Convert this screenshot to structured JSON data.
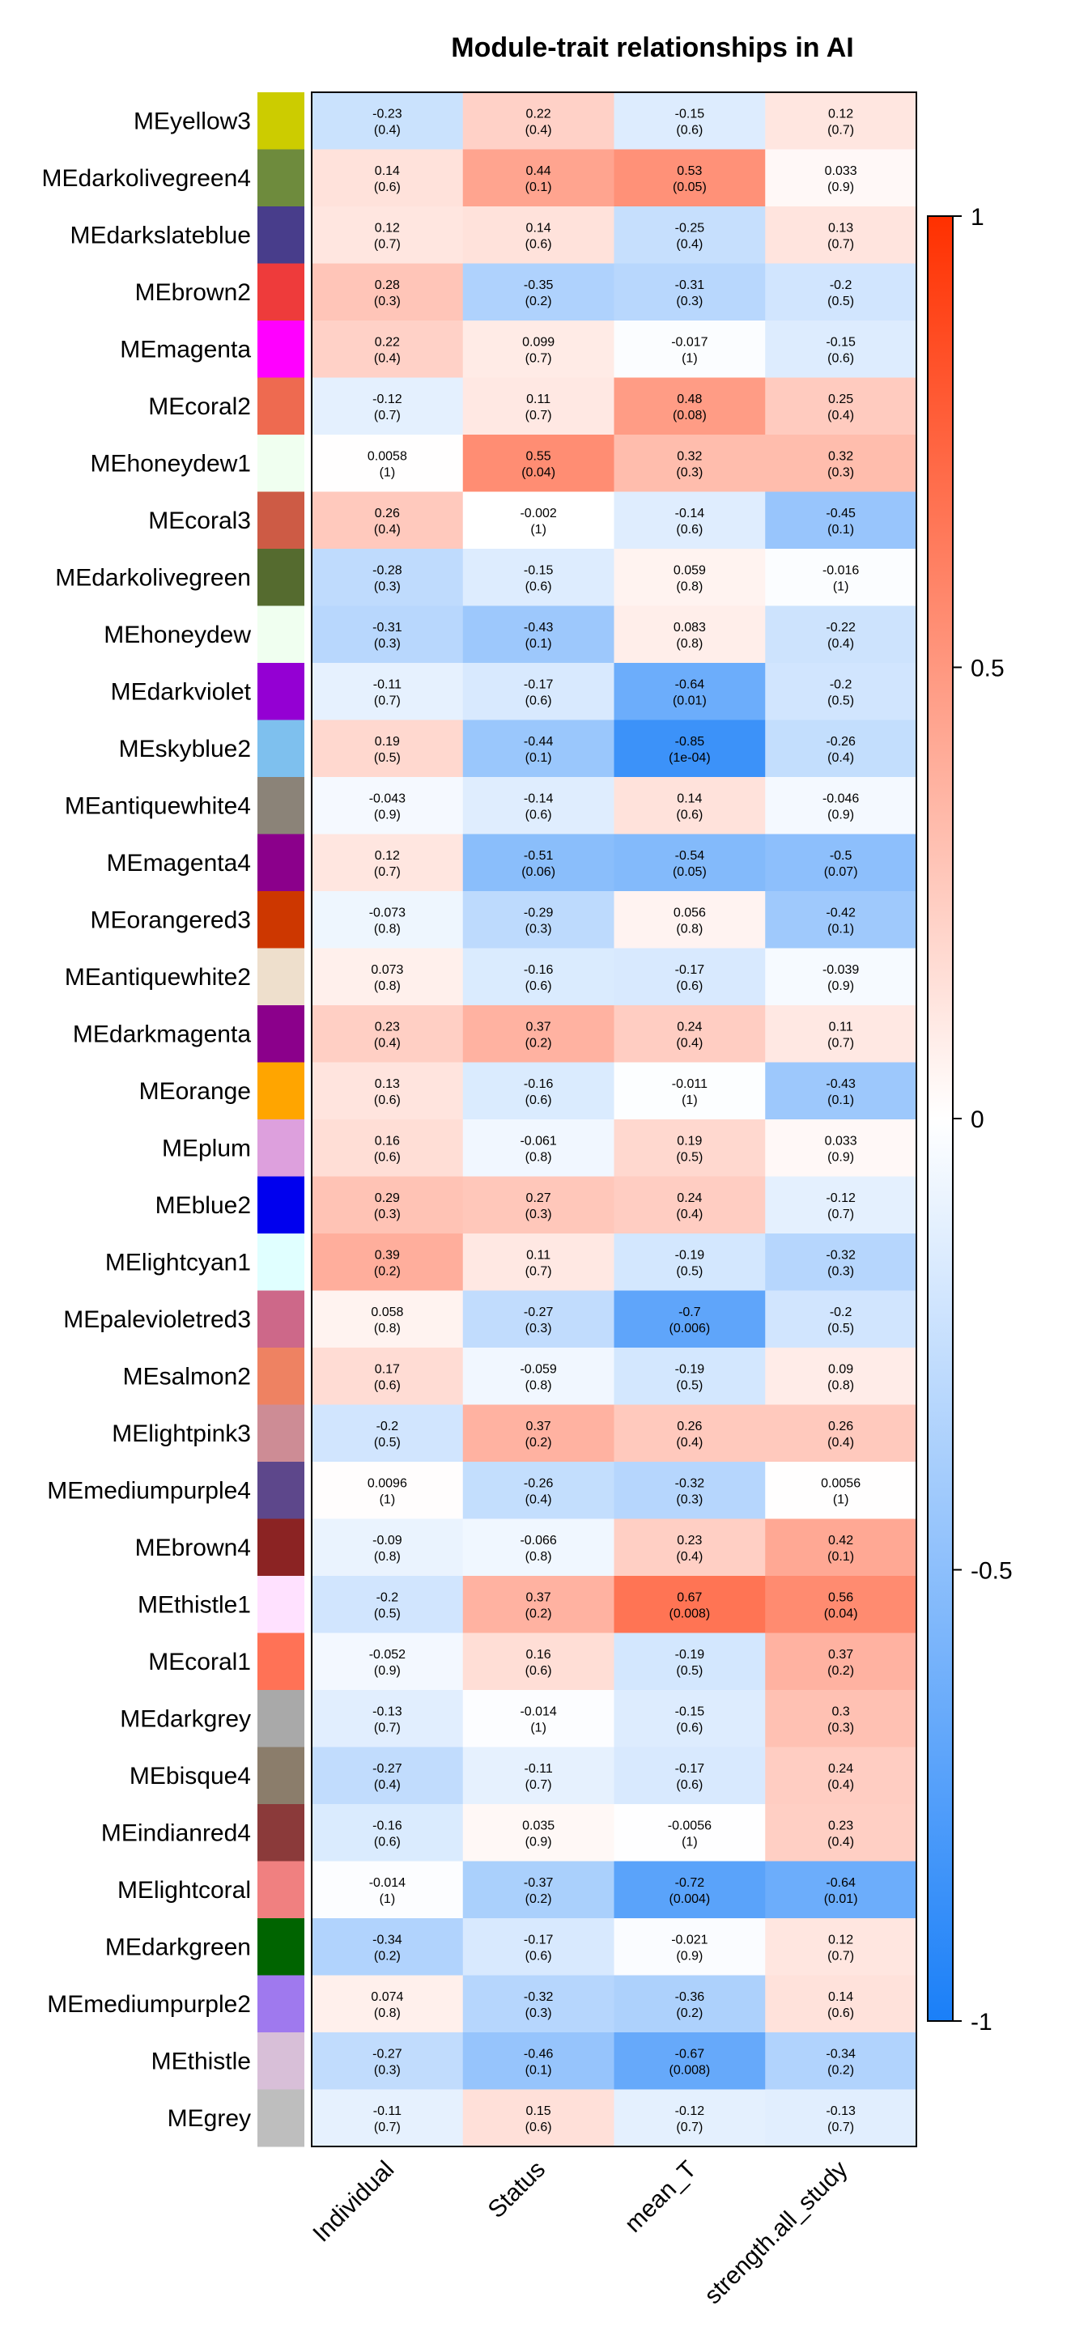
{
  "chart_data": {
    "type": "heatmap",
    "title": "Module-trait relationships in AI",
    "columns": [
      "Individual",
      "Status",
      "mean_T",
      "strength.all_study"
    ],
    "colorbar": {
      "min": -1,
      "max": 1,
      "ticks": [
        "1",
        "0.5",
        "0",
        "-0.5",
        "-1"
      ],
      "tick_values": [
        1,
        0.5,
        0,
        -0.5,
        -1
      ]
    },
    "colors": {
      "neg": "#1a7ff8",
      "mid": "#ffffff",
      "pos": "#ff3000"
    },
    "rows": [
      {
        "module": "MEyellow3",
        "swatch": "#cccc00",
        "values": [
          -0.23,
          0.22,
          -0.15,
          0.12
        ],
        "labels": [
          "-0.23",
          "0.22",
          "-0.15",
          "0.12"
        ],
        "pvalues": [
          "(0.4)",
          "(0.4)",
          "(0.6)",
          "(0.7)"
        ]
      },
      {
        "module": "MEdarkolivegreen4",
        "swatch": "#6e8b3d",
        "values": [
          0.14,
          0.44,
          0.53,
          0.033
        ],
        "labels": [
          "0.14",
          "0.44",
          "0.53",
          "0.033"
        ],
        "pvalues": [
          "(0.6)",
          "(0.1)",
          "(0.05)",
          "(0.9)"
        ]
      },
      {
        "module": "MEdarkslateblue",
        "swatch": "#483d8b",
        "values": [
          0.12,
          0.14,
          -0.25,
          0.13
        ],
        "labels": [
          "0.12",
          "0.14",
          "-0.25",
          "0.13"
        ],
        "pvalues": [
          "(0.7)",
          "(0.6)",
          "(0.4)",
          "(0.7)"
        ]
      },
      {
        "module": "MEbrown2",
        "swatch": "#ee3b3b",
        "values": [
          0.28,
          -0.35,
          -0.31,
          -0.2
        ],
        "labels": [
          "0.28",
          "-0.35",
          "-0.31",
          "-0.2"
        ],
        "pvalues": [
          "(0.3)",
          "(0.2)",
          "(0.3)",
          "(0.5)"
        ]
      },
      {
        "module": "MEmagenta",
        "swatch": "#ff00ff",
        "values": [
          0.22,
          0.099,
          -0.017,
          -0.15
        ],
        "labels": [
          "0.22",
          "0.099",
          "-0.017",
          "-0.15"
        ],
        "pvalues": [
          "(0.4)",
          "(0.7)",
          "(1)",
          "(0.6)"
        ]
      },
      {
        "module": "MEcoral2",
        "swatch": "#ee6a50",
        "values": [
          -0.12,
          0.11,
          0.48,
          0.25
        ],
        "labels": [
          "-0.12",
          "0.11",
          "0.48",
          "0.25"
        ],
        "pvalues": [
          "(0.7)",
          "(0.7)",
          "(0.08)",
          "(0.4)"
        ]
      },
      {
        "module": "MEhoneydew1",
        "swatch": "#f0fff0",
        "values": [
          0.0058,
          0.55,
          0.32,
          0.32
        ],
        "labels": [
          "0.0058",
          "0.55",
          "0.32",
          "0.32"
        ],
        "pvalues": [
          "(1)",
          "(0.04)",
          "(0.3)",
          "(0.3)"
        ]
      },
      {
        "module": "MEcoral3",
        "swatch": "#cd5b45",
        "values": [
          0.26,
          -0.002,
          -0.14,
          -0.45
        ],
        "labels": [
          "0.26",
          "-0.002",
          "-0.14",
          "-0.45"
        ],
        "pvalues": [
          "(0.4)",
          "(1)",
          "(0.6)",
          "(0.1)"
        ]
      },
      {
        "module": "MEdarkolivegreen",
        "swatch": "#556b2f",
        "values": [
          -0.28,
          -0.15,
          0.059,
          -0.016
        ],
        "labels": [
          "-0.28",
          "-0.15",
          "0.059",
          "-0.016"
        ],
        "pvalues": [
          "(0.3)",
          "(0.6)",
          "(0.8)",
          "(1)"
        ]
      },
      {
        "module": "MEhoneydew",
        "swatch": "#f0fff0",
        "values": [
          -0.31,
          -0.43,
          0.083,
          -0.22
        ],
        "labels": [
          "-0.31",
          "-0.43",
          "0.083",
          "-0.22"
        ],
        "pvalues": [
          "(0.3)",
          "(0.1)",
          "(0.8)",
          "(0.4)"
        ]
      },
      {
        "module": "MEdarkviolet",
        "swatch": "#9400d3",
        "values": [
          -0.11,
          -0.17,
          -0.64,
          -0.2
        ],
        "labels": [
          "-0.11",
          "-0.17",
          "-0.64",
          "-0.2"
        ],
        "pvalues": [
          "(0.7)",
          "(0.6)",
          "(0.01)",
          "(0.5)"
        ]
      },
      {
        "module": "MEskyblue2",
        "swatch": "#7ec0ee",
        "values": [
          0.19,
          -0.44,
          -0.85,
          -0.26
        ],
        "labels": [
          "0.19",
          "-0.44",
          "-0.85",
          "-0.26"
        ],
        "pvalues": [
          "(0.5)",
          "(0.1)",
          "(1e-04)",
          "(0.4)"
        ]
      },
      {
        "module": "MEantiquewhite4",
        "swatch": "#8b8378",
        "values": [
          -0.043,
          -0.14,
          0.14,
          -0.046
        ],
        "labels": [
          "-0.043",
          "-0.14",
          "0.14",
          "-0.046"
        ],
        "pvalues": [
          "(0.9)",
          "(0.6)",
          "(0.6)",
          "(0.9)"
        ]
      },
      {
        "module": "MEmagenta4",
        "swatch": "#8b008b",
        "values": [
          0.12,
          -0.51,
          -0.54,
          -0.5
        ],
        "labels": [
          "0.12",
          "-0.51",
          "-0.54",
          "-0.5"
        ],
        "pvalues": [
          "(0.7)",
          "(0.06)",
          "(0.05)",
          "(0.07)"
        ]
      },
      {
        "module": "MEorangered3",
        "swatch": "#cd3700",
        "values": [
          -0.073,
          -0.29,
          0.056,
          -0.42
        ],
        "labels": [
          "-0.073",
          "-0.29",
          "0.056",
          "-0.42"
        ],
        "pvalues": [
          "(0.8)",
          "(0.3)",
          "(0.8)",
          "(0.1)"
        ]
      },
      {
        "module": "MEantiquewhite2",
        "swatch": "#eedfcc",
        "values": [
          0.073,
          -0.16,
          -0.17,
          -0.039
        ],
        "labels": [
          "0.073",
          "-0.16",
          "-0.17",
          "-0.039"
        ],
        "pvalues": [
          "(0.8)",
          "(0.6)",
          "(0.6)",
          "(0.9)"
        ]
      },
      {
        "module": "MEdarkmagenta",
        "swatch": "#8b008b",
        "values": [
          0.23,
          0.37,
          0.24,
          0.11
        ],
        "labels": [
          "0.23",
          "0.37",
          "0.24",
          "0.11"
        ],
        "pvalues": [
          "(0.4)",
          "(0.2)",
          "(0.4)",
          "(0.7)"
        ]
      },
      {
        "module": "MEorange",
        "swatch": "#ffa500",
        "values": [
          0.13,
          -0.16,
          -0.011,
          -0.43
        ],
        "labels": [
          "0.13",
          "-0.16",
          "-0.011",
          "-0.43"
        ],
        "pvalues": [
          "(0.6)",
          "(0.6)",
          "(1)",
          "(0.1)"
        ]
      },
      {
        "module": "MEplum",
        "swatch": "#dda0dd",
        "values": [
          0.16,
          -0.061,
          0.19,
          0.033
        ],
        "labels": [
          "0.16",
          "-0.061",
          "0.19",
          "0.033"
        ],
        "pvalues": [
          "(0.6)",
          "(0.8)",
          "(0.5)",
          "(0.9)"
        ]
      },
      {
        "module": "MEblue2",
        "swatch": "#0000ee",
        "values": [
          0.29,
          0.27,
          0.24,
          -0.12
        ],
        "labels": [
          "0.29",
          "0.27",
          "0.24",
          "-0.12"
        ],
        "pvalues": [
          "(0.3)",
          "(0.3)",
          "(0.4)",
          "(0.7)"
        ]
      },
      {
        "module": "MElightcyan1",
        "swatch": "#e0ffff",
        "values": [
          0.39,
          0.11,
          -0.19,
          -0.32
        ],
        "labels": [
          "0.39",
          "0.11",
          "-0.19",
          "-0.32"
        ],
        "pvalues": [
          "(0.2)",
          "(0.7)",
          "(0.5)",
          "(0.3)"
        ]
      },
      {
        "module": "MEpalevioletred3",
        "swatch": "#cd6889",
        "values": [
          0.058,
          -0.27,
          -0.7,
          -0.2
        ],
        "labels": [
          "0.058",
          "-0.27",
          "-0.7",
          "-0.2"
        ],
        "pvalues": [
          "(0.8)",
          "(0.3)",
          "(0.006)",
          "(0.5)"
        ]
      },
      {
        "module": "MEsalmon2",
        "swatch": "#ee8262",
        "values": [
          0.17,
          -0.059,
          -0.19,
          0.09
        ],
        "labels": [
          "0.17",
          "-0.059",
          "-0.19",
          "0.09"
        ],
        "pvalues": [
          "(0.6)",
          "(0.8)",
          "(0.5)",
          "(0.8)"
        ]
      },
      {
        "module": "MElightpink3",
        "swatch": "#cd8c95",
        "values": [
          -0.2,
          0.37,
          0.26,
          0.26
        ],
        "labels": [
          "-0.2",
          "0.37",
          "0.26",
          "0.26"
        ],
        "pvalues": [
          "(0.5)",
          "(0.2)",
          "(0.4)",
          "(0.4)"
        ]
      },
      {
        "module": "MEmediumpurple4",
        "swatch": "#5d478b",
        "values": [
          0.0096,
          -0.26,
          -0.32,
          0.0056
        ],
        "labels": [
          "0.0096",
          "-0.26",
          "-0.32",
          "0.0056"
        ],
        "pvalues": [
          "(1)",
          "(0.4)",
          "(0.3)",
          "(1)"
        ]
      },
      {
        "module": "MEbrown4",
        "swatch": "#8b2323",
        "values": [
          -0.09,
          -0.066,
          0.23,
          0.42
        ],
        "labels": [
          "-0.09",
          "-0.066",
          "0.23",
          "0.42"
        ],
        "pvalues": [
          "(0.8)",
          "(0.8)",
          "(0.4)",
          "(0.1)"
        ]
      },
      {
        "module": "MEthistle1",
        "swatch": "#ffe1ff",
        "values": [
          -0.2,
          0.37,
          0.67,
          0.56
        ],
        "labels": [
          "-0.2",
          "0.37",
          "0.67",
          "0.56"
        ],
        "pvalues": [
          "(0.5)",
          "(0.2)",
          "(0.008)",
          "(0.04)"
        ]
      },
      {
        "module": "MEcoral1",
        "swatch": "#ff7256",
        "values": [
          -0.052,
          0.16,
          -0.19,
          0.37
        ],
        "labels": [
          "-0.052",
          "0.16",
          "-0.19",
          "0.37"
        ],
        "pvalues": [
          "(0.9)",
          "(0.6)",
          "(0.5)",
          "(0.2)"
        ]
      },
      {
        "module": "MEdarkgrey",
        "swatch": "#a9a9a9",
        "values": [
          -0.13,
          -0.014,
          -0.15,
          0.3
        ],
        "labels": [
          "-0.13",
          "-0.014",
          "-0.15",
          "0.3"
        ],
        "pvalues": [
          "(0.7)",
          "(1)",
          "(0.6)",
          "(0.3)"
        ]
      },
      {
        "module": "MEbisque4",
        "swatch": "#8b7d6b",
        "values": [
          -0.27,
          -0.11,
          -0.17,
          0.24
        ],
        "labels": [
          "-0.27",
          "-0.11",
          "-0.17",
          "0.24"
        ],
        "pvalues": [
          "(0.4)",
          "(0.7)",
          "(0.6)",
          "(0.4)"
        ]
      },
      {
        "module": "MEindianred4",
        "swatch": "#8b3a3a",
        "values": [
          -0.16,
          0.035,
          -0.0056,
          0.23
        ],
        "labels": [
          "-0.16",
          "0.035",
          "-0.0056",
          "0.23"
        ],
        "pvalues": [
          "(0.6)",
          "(0.9)",
          "(1)",
          "(0.4)"
        ]
      },
      {
        "module": "MElightcoral",
        "swatch": "#f08080",
        "values": [
          -0.014,
          -0.37,
          -0.72,
          -0.64
        ],
        "labels": [
          "-0.014",
          "-0.37",
          "-0.72",
          "-0.64"
        ],
        "pvalues": [
          "(1)",
          "(0.2)",
          "(0.004)",
          "(0.01)"
        ]
      },
      {
        "module": "MEdarkgreen",
        "swatch": "#006400",
        "values": [
          -0.34,
          -0.17,
          -0.021,
          0.12
        ],
        "labels": [
          "-0.34",
          "-0.17",
          "-0.021",
          "0.12"
        ],
        "pvalues": [
          "(0.2)",
          "(0.6)",
          "(0.9)",
          "(0.7)"
        ]
      },
      {
        "module": "MEmediumpurple2",
        "swatch": "#9f79ee",
        "values": [
          0.074,
          -0.32,
          -0.36,
          0.14
        ],
        "labels": [
          "0.074",
          "-0.32",
          "-0.36",
          "0.14"
        ],
        "pvalues": [
          "(0.8)",
          "(0.3)",
          "(0.2)",
          "(0.6)"
        ]
      },
      {
        "module": "MEthistle",
        "swatch": "#d8bfd8",
        "values": [
          -0.27,
          -0.46,
          -0.67,
          -0.34
        ],
        "labels": [
          "-0.27",
          "-0.46",
          "-0.67",
          "-0.34"
        ],
        "pvalues": [
          "(0.3)",
          "(0.1)",
          "(0.008)",
          "(0.2)"
        ]
      },
      {
        "module": "MEgrey",
        "swatch": "#bebebe",
        "values": [
          -0.11,
          0.15,
          -0.12,
          -0.13
        ],
        "labels": [
          "-0.11",
          "0.15",
          "-0.12",
          "-0.13"
        ],
        "pvalues": [
          "(0.7)",
          "(0.6)",
          "(0.7)",
          "(0.7)"
        ]
      }
    ]
  }
}
